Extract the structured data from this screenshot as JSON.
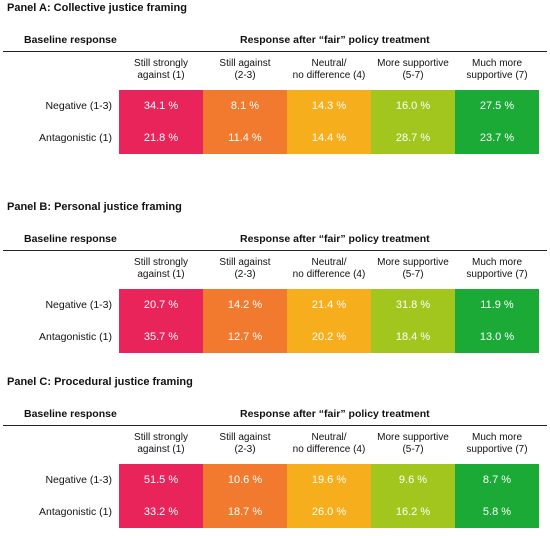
{
  "panels": [
    {
      "title": "Panel A: Collective justice framing",
      "baseline_header": "Baseline response",
      "response_header": "Response after “fair” policy treatment",
      "columns": [
        [
          "Still strongly",
          "against (1)"
        ],
        [
          "Still against",
          "(2-3)"
        ],
        [
          "Neutral/",
          "no difference (4)"
        ],
        [
          "More supportive",
          "(5-7)"
        ],
        [
          "Much more",
          "supportive (7)"
        ]
      ],
      "rows": [
        {
          "label": "Negative (1-3)",
          "values": [
            "34.1 %",
            "8.1 %",
            "14.3 %",
            "16.0 %",
            "27.5 %"
          ]
        },
        {
          "label": "Antagonistic (1)",
          "values": [
            "21.8 %",
            "11.4 %",
            "14.4 %",
            "28.7 %",
            "23.7 %"
          ]
        }
      ]
    },
    {
      "title": "Panel B: Personal justice framing",
      "baseline_header": "Baseline response",
      "response_header": "Response after “fair” policy treatment",
      "columns": [
        [
          "Still strongly",
          "against (1)"
        ],
        [
          "Still against",
          "(2-3)"
        ],
        [
          "Neutral/",
          "no difference (4)"
        ],
        [
          "More supportive",
          "(5-7)"
        ],
        [
          "Much more",
          "supportive (7)"
        ]
      ],
      "rows": [
        {
          "label": "Negative (1-3)",
          "values": [
            "20.7 %",
            "14.2 %",
            "21.4 %",
            "31.8 %",
            "11.9 %"
          ]
        },
        {
          "label": "Antagonistic (1)",
          "values": [
            "35.7 %",
            "12.7 %",
            "20.2 %",
            "18.4 %",
            "13.0 %"
          ]
        }
      ]
    },
    {
      "title": "Panel C: Procedural justice framing",
      "baseline_header": "Baseline response",
      "response_header": "Response after “fair” policy treatment",
      "columns": [
        [
          "Still strongly",
          "against (1)"
        ],
        [
          "Still against",
          "(2-3)"
        ],
        [
          "Neutral/",
          "no difference (4)"
        ],
        [
          "More supportive",
          "(5-7)"
        ],
        [
          "Much more",
          "supportive (7)"
        ]
      ],
      "rows": [
        {
          "label": "Negative (1-3)",
          "values": [
            "51.5 %",
            "10.6 %",
            "19.6 %",
            "9.6 %",
            "8.7 %"
          ]
        },
        {
          "label": "Antagonistic (1)",
          "values": [
            "33.2 %",
            "18.7 %",
            "26.0 %",
            "16.2 %",
            "5.8 %"
          ]
        }
      ]
    }
  ],
  "colors": {
    "still_strongly_against": "#e8245b",
    "still_against": "#f27a2e",
    "neutral": "#f7ae1c",
    "more_supportive": "#a2c61e",
    "much_more_supportive": "#1aaa35"
  }
}
